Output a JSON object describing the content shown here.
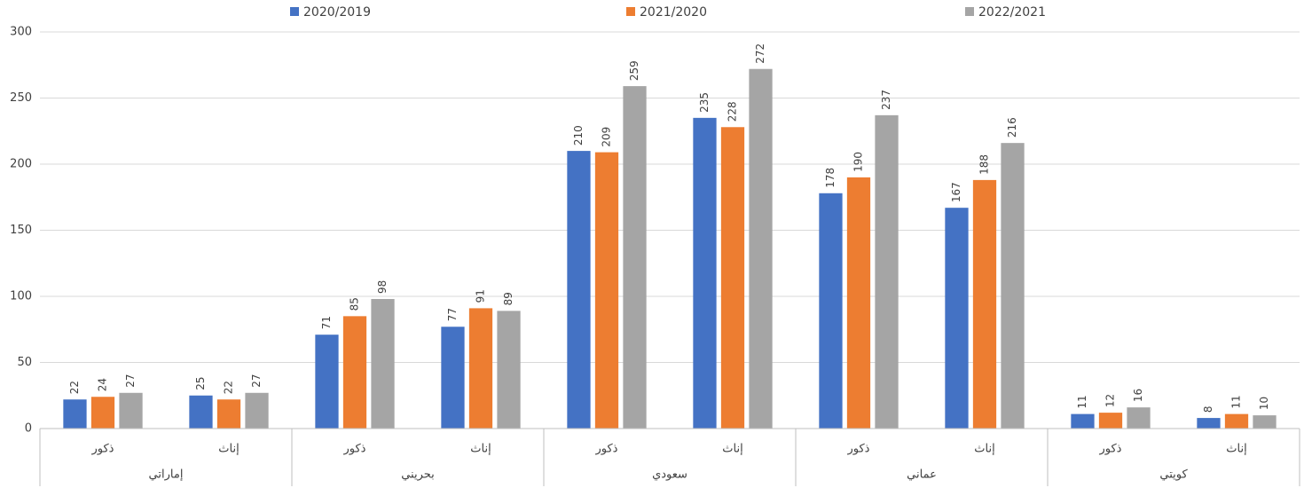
{
  "chart_data": {
    "type": "bar",
    "categories": [
      "ذكور",
      "إناث",
      "ذكور",
      "إناث",
      "ذكور",
      "إناث",
      "ذكور",
      "إناث",
      "ذكور",
      "إناث"
    ],
    "groups": [
      "إماراتي",
      "بحريني",
      "سعودي",
      "عماني",
      "كويتي"
    ],
    "series": [
      {
        "name": "2020/2019",
        "color": "#4472c4",
        "values": [
          22,
          25,
          71,
          77,
          210,
          235,
          178,
          167,
          11,
          8
        ]
      },
      {
        "name": "2021/2020",
        "color": "#ed7d31",
        "values": [
          24,
          22,
          85,
          91,
          209,
          228,
          190,
          188,
          12,
          11
        ]
      },
      {
        "name": "2022/2021",
        "color": "#a5a5a5",
        "values": [
          27,
          27,
          98,
          89,
          259,
          272,
          237,
          216,
          16,
          10
        ]
      }
    ],
    "ylim": [
      0,
      300
    ],
    "yticks": [
      0,
      50,
      100,
      150,
      200,
      250,
      300
    ],
    "grid": true,
    "legend": "top"
  }
}
